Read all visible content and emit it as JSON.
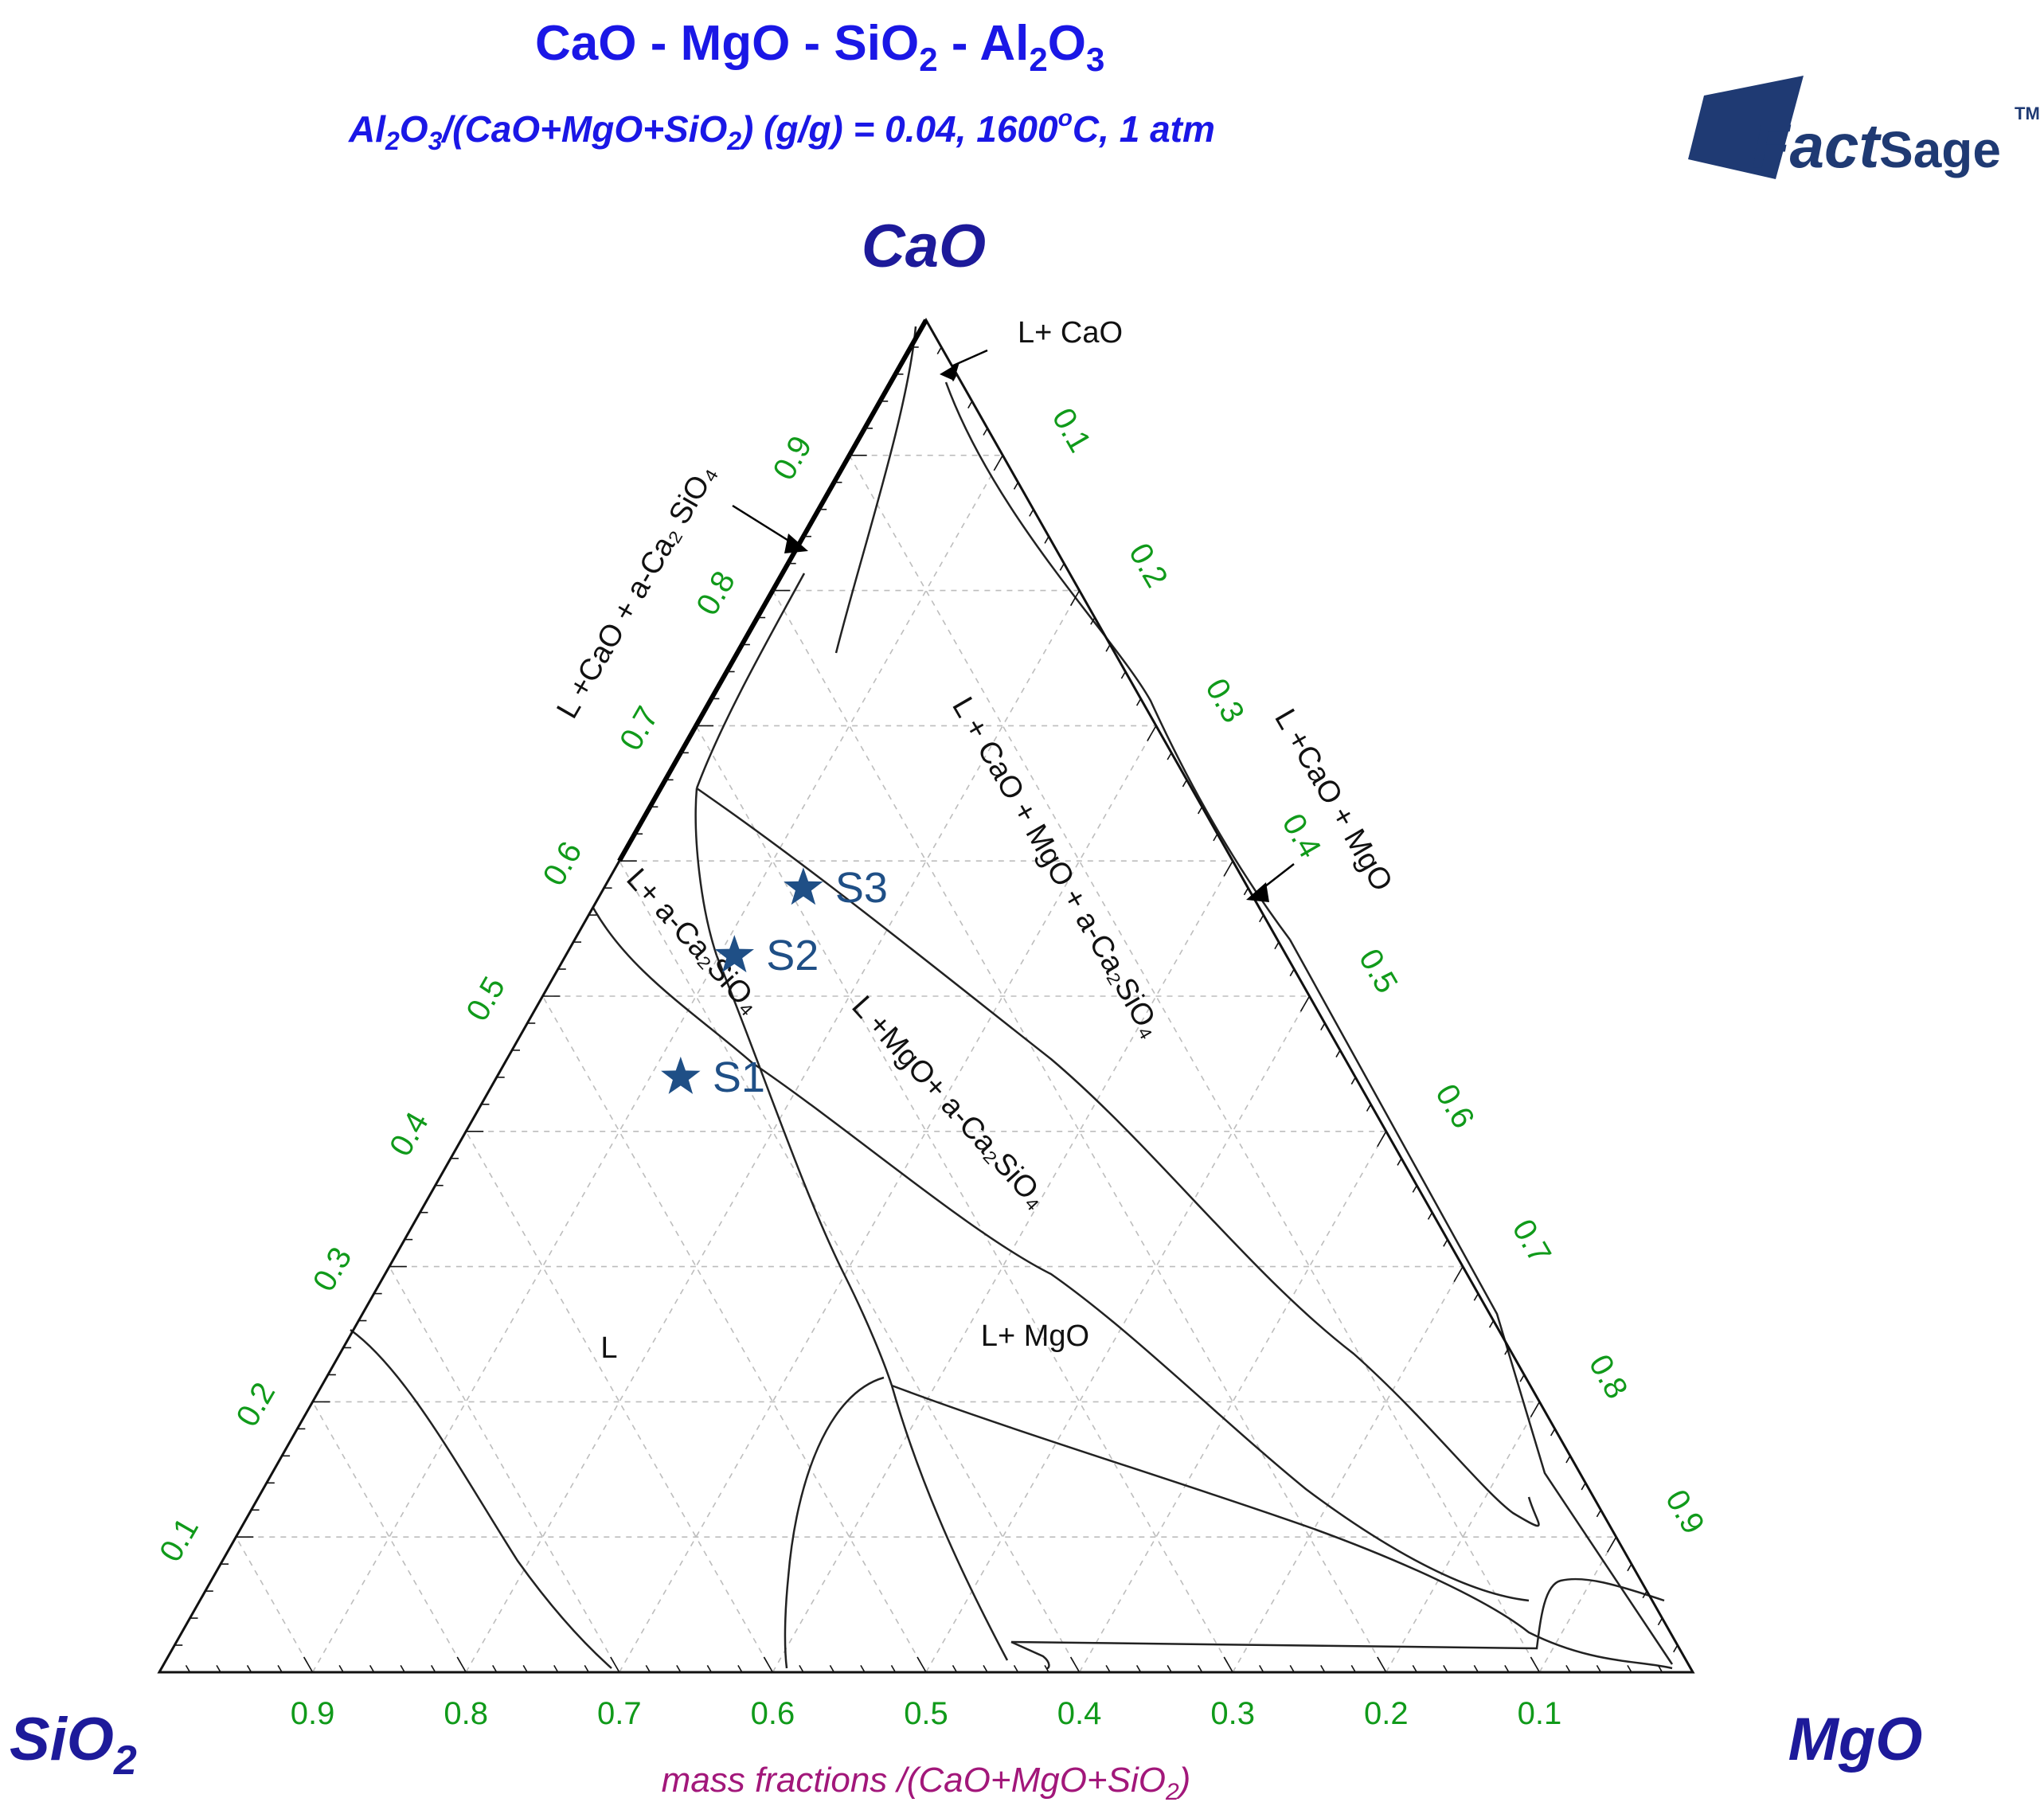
{
  "header": {
    "title_parts": [
      "CaO - MgO - SiO",
      "2",
      " - Al",
      "2",
      "O",
      "3"
    ],
    "subtitle_parts": [
      "Al",
      "2",
      "O",
      "3",
      "/(CaO+MgO+SiO",
      "2",
      ") (g/g)  = 0.04,  1600",
      "o",
      "C, 1 atm"
    ],
    "logo_parts": [
      "Fact",
      "Sage",
      "TM"
    ]
  },
  "chart_data": {
    "type": "ternary",
    "vertices": {
      "top": "CaO",
      "left_parts": [
        "SiO",
        "2"
      ],
      "right": "MgO"
    },
    "axis_label_parts": [
      "mass fractions /(CaO+MgO+SiO",
      "2",
      ")"
    ],
    "tick_labels": [
      "0.1",
      "0.2",
      "0.3",
      "0.4",
      "0.5",
      "0.6",
      "0.7",
      "0.8",
      "0.9"
    ],
    "grid": true,
    "regions": [
      {
        "label": "L"
      },
      {
        "label": "L+ MgO"
      },
      {
        "label": "L+ CaO"
      },
      {
        "label": "L +CaO + a-Ca₂ SiO₄"
      },
      {
        "label": "L + CaO + MgO + a-Ca₂SiO₄"
      },
      {
        "label": "L +CaO + MgO"
      },
      {
        "label": "L +MgO+ a-Ca₂SiO₄"
      },
      {
        "label": "L+ a-Ca₂SiO₄"
      }
    ],
    "samples": [
      {
        "name": "S3",
        "cao": 0.58,
        "mgo": 0.13,
        "sio2": 0.29
      },
      {
        "name": "S2",
        "cao": 0.53,
        "mgo": 0.11,
        "sio2": 0.36
      },
      {
        "name": "S1",
        "cao": 0.44,
        "mgo": 0.12,
        "sio2": 0.44
      }
    ]
  }
}
